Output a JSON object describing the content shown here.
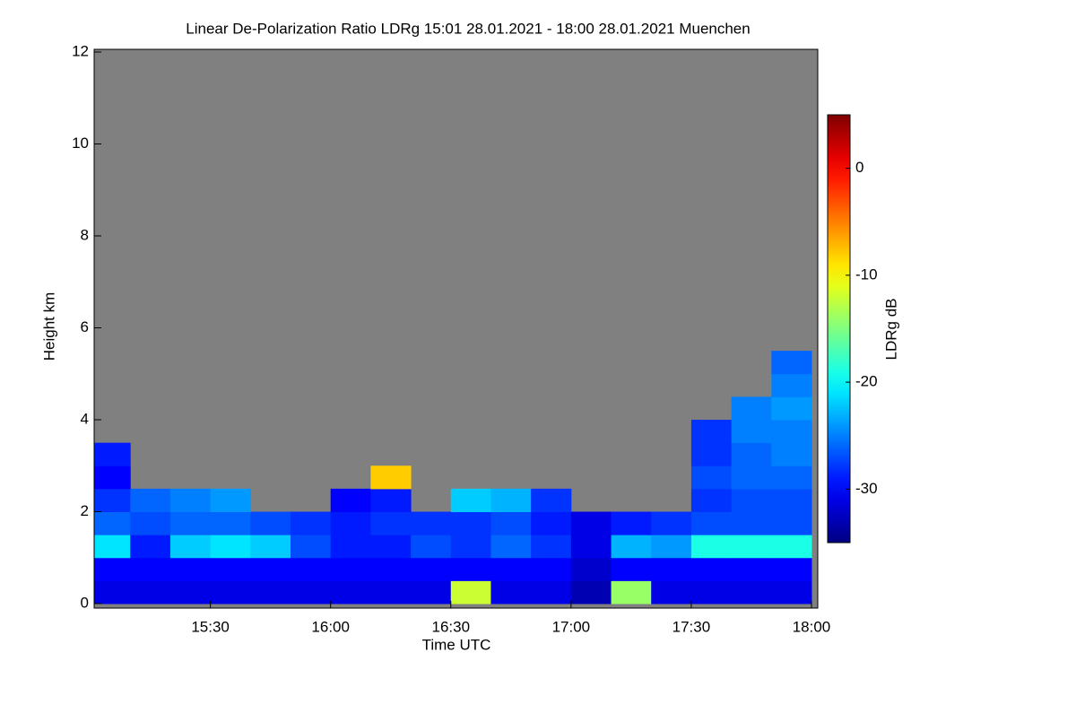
{
  "chart_data": {
    "type": "heatmap",
    "title": "Linear De-Polarization Ratio LDRg   15:01 28.01.2021 - 18:00 28.01.2021 Muenchen",
    "x_label": "Time UTC",
    "y_label": "Height km",
    "colorbar_label": "LDRg dB",
    "x": [
      "15:01",
      "15:10",
      "15:20",
      "15:30",
      "15:40",
      "15:50",
      "16:00",
      "16:10",
      "16:20",
      "16:30",
      "16:40",
      "16:50",
      "17:00",
      "17:10",
      "17:20",
      "17:30",
      "17:40",
      "17:50",
      "18:00"
    ],
    "y": [
      0,
      0.5,
      1,
      1.5,
      2,
      2.5,
      3,
      3.5,
      4,
      4.5,
      5,
      5.5
    ],
    "z": [
      [
        -31,
        -31,
        -31,
        -31,
        -31,
        -31,
        -31,
        -31,
        -31,
        -12,
        -31,
        -31,
        -33,
        -14,
        -31,
        -31,
        -31,
        -31
      ],
      [
        -30,
        -30,
        -30,
        -30,
        -30,
        -30,
        -30,
        -30,
        -30,
        -30,
        -30,
        -30,
        -32,
        -30,
        -30,
        -30,
        -30,
        -30
      ],
      [
        -21,
        -29,
        -22,
        -21,
        -22,
        -27,
        -29,
        -29,
        -27,
        -28,
        -26,
        -28,
        -31,
        -23,
        -24,
        -19,
        -19,
        -19
      ],
      [
        -26,
        -27,
        -26,
        -26,
        -27,
        -28,
        -29,
        -28,
        -28,
        -28,
        -27,
        -29,
        -31,
        -29,
        -28,
        -27,
        -27,
        -27
      ],
      [
        -28,
        -26,
        -25,
        -24,
        null,
        null,
        -30,
        -29,
        null,
        -22,
        -23,
        -28,
        null,
        null,
        null,
        -28,
        -27,
        -27
      ],
      [
        -30,
        null,
        null,
        null,
        null,
        null,
        null,
        -8,
        null,
        null,
        null,
        null,
        null,
        null,
        null,
        -27,
        -26,
        -26
      ],
      [
        -29,
        null,
        null,
        null,
        null,
        null,
        null,
        null,
        null,
        null,
        null,
        null,
        null,
        null,
        null,
        -28,
        -26,
        -25
      ],
      [
        null,
        null,
        null,
        null,
        null,
        null,
        null,
        null,
        null,
        null,
        null,
        null,
        null,
        null,
        null,
        -28,
        -25,
        -25
      ],
      [
        null,
        null,
        null,
        null,
        null,
        null,
        null,
        null,
        null,
        null,
        null,
        null,
        null,
        null,
        null,
        null,
        -25,
        -24
      ],
      [
        null,
        null,
        null,
        null,
        null,
        null,
        null,
        null,
        null,
        null,
        null,
        null,
        null,
        null,
        null,
        null,
        null,
        -25
      ],
      [
        null,
        null,
        null,
        null,
        null,
        null,
        null,
        null,
        null,
        null,
        null,
        null,
        null,
        null,
        null,
        null,
        null,
        -26
      ]
    ],
    "xlim": [
      "15:01",
      "18:00"
    ],
    "xticks": [
      "15:30",
      "16:00",
      "16:30",
      "17:00",
      "17:30",
      "18:00"
    ],
    "ylim": [
      0,
      12
    ],
    "yticks": [
      0,
      2,
      4,
      6,
      8,
      10,
      12
    ],
    "zlim": [
      -35,
      5
    ],
    "zticks": [
      0,
      -10,
      -20,
      -30
    ],
    "colormap": "jet",
    "nodata_color": "#808080"
  }
}
